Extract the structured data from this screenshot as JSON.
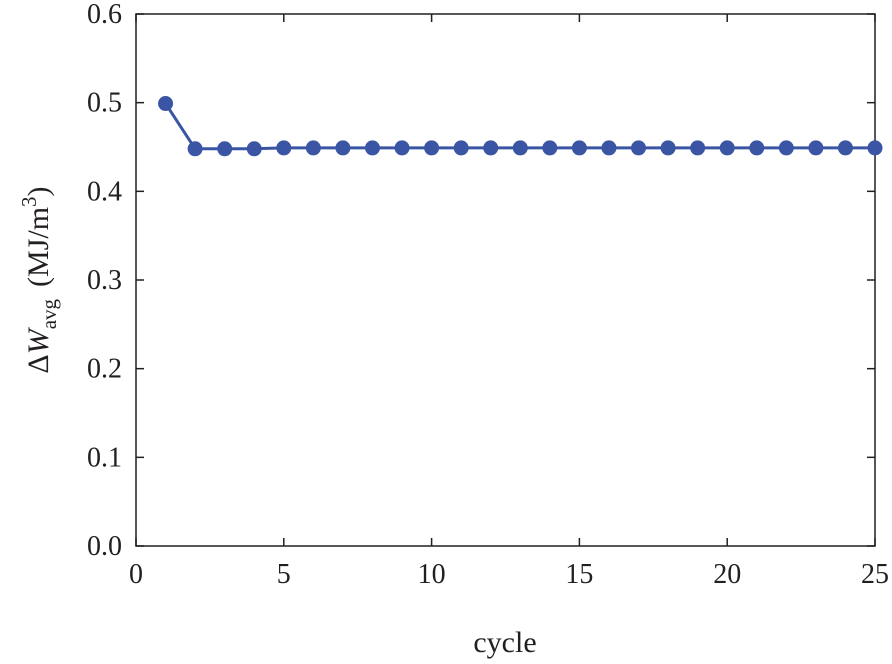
{
  "chart_data": {
    "type": "line",
    "title": "",
    "xlabel": "cycle",
    "ylabel": {
      "delta": "Δ",
      "symbol": "W",
      "subscript": "avg",
      "unit_open": "(MJ/m",
      "unit_exp": "3",
      "unit_close": ")"
    },
    "xlim": [
      0,
      25
    ],
    "ylim": [
      0.0,
      0.6
    ],
    "xticks": [
      0,
      5,
      10,
      15,
      20,
      25
    ],
    "yticks": [
      0.0,
      0.1,
      0.2,
      0.3,
      0.4,
      0.5,
      0.6
    ],
    "xtick_labels": [
      "0",
      "5",
      "10",
      "15",
      "20",
      "25"
    ],
    "ytick_labels": [
      "0.0",
      "0.1",
      "0.2",
      "0.3",
      "0.4",
      "0.5",
      "0.6"
    ],
    "grid": false,
    "series": [
      {
        "name": "ΔW_avg",
        "color": "#3a55a4",
        "marker": "circle",
        "x": [
          1,
          2,
          3,
          4,
          5,
          6,
          7,
          8,
          9,
          10,
          11,
          12,
          13,
          14,
          15,
          16,
          17,
          18,
          19,
          20,
          21,
          22,
          23,
          24,
          25
        ],
        "values": [
          0.499,
          0.448,
          0.448,
          0.448,
          0.449,
          0.449,
          0.449,
          0.449,
          0.449,
          0.449,
          0.449,
          0.449,
          0.449,
          0.449,
          0.449,
          0.449,
          0.449,
          0.449,
          0.449,
          0.449,
          0.449,
          0.449,
          0.449,
          0.449,
          0.449
        ]
      }
    ]
  },
  "colors": {
    "axis": "#231f20",
    "series": "#3a55a4"
  }
}
